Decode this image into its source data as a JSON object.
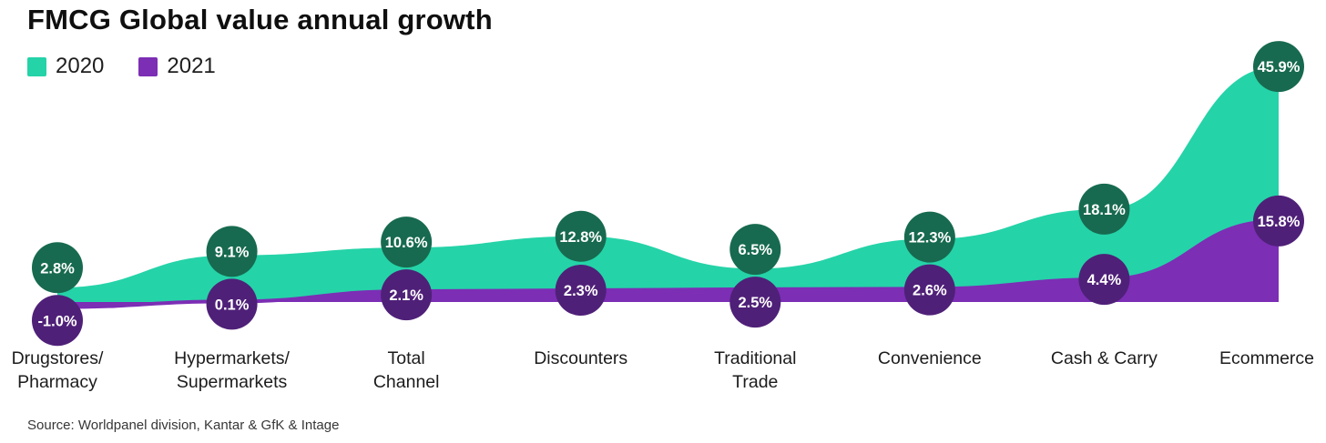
{
  "title": "FMCG Global value annual growth",
  "legend": [
    {
      "label": "2020",
      "color": "#25d3a8"
    },
    {
      "label": "2021",
      "color": "#7c2eb5"
    }
  ],
  "source": "Source: Worldpanel division, Kantar & GfK & Intage",
  "colors": {
    "area_2020": "#25d3a8",
    "area_2021": "#7c2eb5",
    "bubble_2020": "#176a4f",
    "bubble_2021": "#4f2078",
    "bubble_text": "#ffffff",
    "title_text": "#0f0f0f"
  },
  "chart_data": {
    "type": "area",
    "title": "FMCG Global value annual growth",
    "categories": [
      "Drugstores/\nPharmacy",
      "Hypermarkets/\nSupermarkets",
      "Total\nChannel",
      "Discounters",
      "Traditional\nTrade",
      "Convenience",
      "Cash & Carry",
      "Ecommerce"
    ],
    "series": [
      {
        "name": "2020",
        "values": [
          2.8,
          9.1,
          10.6,
          12.8,
          6.5,
          12.3,
          18.1,
          45.9
        ],
        "labels": [
          "2.8%",
          "9.1%",
          "10.6%",
          "12.8%",
          "6.5%",
          "12.3%",
          "18.1%",
          "45.9%"
        ],
        "area_color": "#25d3a8",
        "bubble_color": "#176a4f"
      },
      {
        "name": "2021",
        "values": [
          -1.0,
          0.1,
          2.1,
          2.3,
          2.5,
          2.6,
          4.4,
          15.8
        ],
        "labels": [
          "-1.0%",
          "0.1%",
          "2.1%",
          "2.3%",
          "2.5%",
          "2.6%",
          "4.4%",
          "15.8%"
        ],
        "area_color": "#7c2eb5",
        "bubble_color": "#4f2078"
      }
    ],
    "xlabel": "",
    "ylabel": "",
    "ylim": [
      -1.0,
      45.9
    ],
    "grid": false,
    "legend_position": "top-left",
    "value_marker": "circle-badge"
  }
}
